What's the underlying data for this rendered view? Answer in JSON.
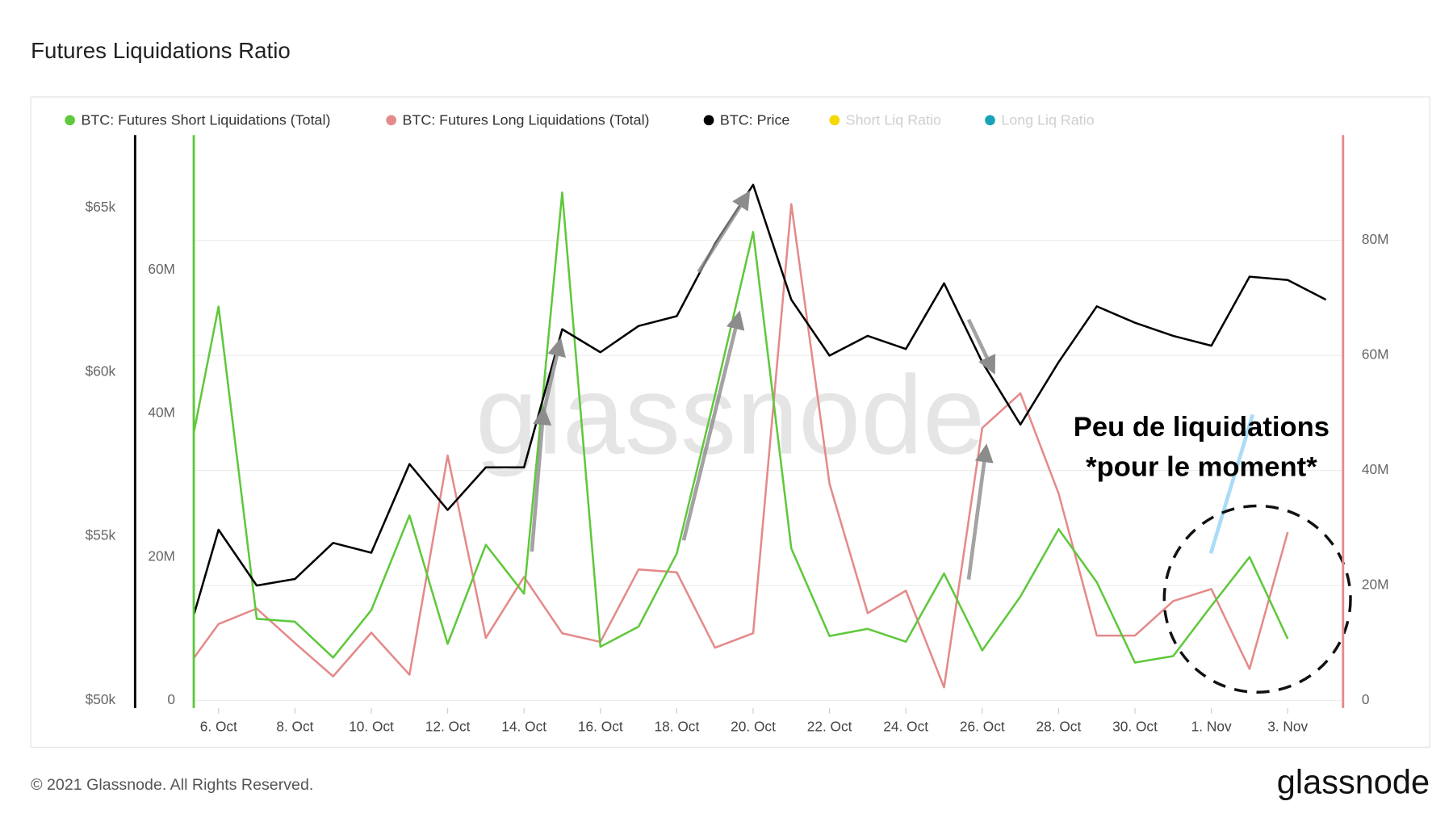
{
  "chart_data": {
    "type": "line",
    "title": "Futures Liquidations Ratio",
    "footer": "© 2021 Glassnode. All Rights Reserved.",
    "logo": "glassnode",
    "watermark": "glassnode",
    "annotations": [
      "Peu de liquidations",
      "*pour le moment*"
    ],
    "x": [
      5.35,
      6,
      7,
      8,
      9,
      10,
      11,
      12,
      13,
      14,
      15,
      16,
      17,
      18,
      19,
      20,
      21,
      22,
      23,
      24,
      25,
      26,
      27,
      28,
      29,
      30,
      31,
      32,
      33,
      34,
      35
    ],
    "xlim": [
      5.35,
      35.45
    ],
    "xticks": [
      {
        "value": 6,
        "label": "6. Oct"
      },
      {
        "value": 8,
        "label": "8. Oct"
      },
      {
        "value": 10,
        "label": "10. Oct"
      },
      {
        "value": 12,
        "label": "12. Oct"
      },
      {
        "value": 14,
        "label": "14. Oct"
      },
      {
        "value": 16,
        "label": "16. Oct"
      },
      {
        "value": 18,
        "label": "18. Oct"
      },
      {
        "value": 20,
        "label": "20. Oct"
      },
      {
        "value": 22,
        "label": "22. Oct"
      },
      {
        "value": 24,
        "label": "24. Oct"
      },
      {
        "value": 26,
        "label": "26. Oct"
      },
      {
        "value": 28,
        "label": "28. Oct"
      },
      {
        "value": 30,
        "label": "30. Oct"
      },
      {
        "value": 32,
        "label": "1. Nov"
      },
      {
        "value": 34,
        "label": "3. Nov"
      }
    ],
    "ylim": [
      49773,
      67210
    ],
    "yticks": [
      {
        "value": 50000,
        "label": "$50k"
      },
      {
        "value": 55000,
        "label": "$55k"
      },
      {
        "value": 60000,
        "label": "$60k"
      },
      {
        "value": 65000,
        "label": "$65k"
      }
    ],
    "y3lim": [
      -1040000,
      78800000
    ],
    "y3ticks": [
      0,
      {
        "value": 20000000,
        "label": "20M"
      },
      {
        "value": 40000000,
        "label": "40M"
      },
      {
        "value": 60000000,
        "label": "60M"
      }
    ],
    "y2lim": [
      -1300000,
      98300000
    ],
    "y2ticks": [
      0,
      {
        "value": 20000000,
        "label": "20M"
      },
      {
        "value": 40000000,
        "label": "40M"
      },
      {
        "value": 60000000,
        "label": "60M"
      },
      {
        "value": 80000000,
        "label": "80M"
      }
    ],
    "grid": true,
    "series": [
      {
        "name": "BTC: Futures Short Liquidations (Total)",
        "color": "#5fc83c",
        "axis": "y3",
        "values": [
          37300000,
          54900000,
          11400000,
          11000000,
          6000000,
          12600000,
          25800000,
          7900000,
          21700000,
          14900000,
          70800000,
          7500000,
          10300000,
          20500000,
          42500000,
          65300000,
          21200000,
          9000000,
          10000000,
          8200000,
          17700000,
          7000000,
          14500000,
          23900000,
          16500000,
          5300000,
          6200000,
          13200000,
          20000000,
          8600000,
          null
        ]
      },
      {
        "name": "BTC: Futures Long Liquidations (Total)",
        "color": "#e48a8a",
        "axis": "y2",
        "values": [
          7400000,
          13300000,
          16000000,
          10000000,
          4200000,
          11800000,
          4500000,
          42600000,
          10900000,
          21500000,
          11700000,
          10200000,
          22800000,
          22300000,
          9200000,
          11700000,
          86300000,
          37700000,
          15200000,
          19100000,
          2300000,
          47400000,
          53400000,
          36000000,
          11300000,
          11300000,
          17300000,
          19400000,
          5500000,
          29300000,
          null
        ]
      },
      {
        "name": "BTC: Price",
        "color": "#000000",
        "axis": "y",
        "values": [
          52600,
          55200,
          53500,
          53700,
          54800,
          54500,
          57200,
          55800,
          57100,
          57100,
          61300,
          60600,
          61400,
          61700,
          63900,
          65700,
          62200,
          60500,
          61100,
          60700,
          62700,
          60300,
          58400,
          60300,
          62000,
          61500,
          61100,
          60800,
          62900,
          62800,
          62200
        ]
      },
      {
        "name": "Short Liq Ratio",
        "color": "#f5d800",
        "hidden": true,
        "axis": "y",
        "values": [
          null,
          null,
          null,
          null,
          null,
          null,
          null,
          null,
          null,
          null,
          null,
          null,
          null,
          null,
          null,
          null,
          null,
          null,
          null,
          null,
          null,
          null,
          null,
          null,
          null,
          null,
          null,
          null,
          null,
          null,
          null
        ]
      },
      {
        "name": "Long Liq Ratio",
        "color": "#1aa3b8",
        "hidden": true,
        "axis": "y",
        "values": [
          null,
          null,
          null,
          null,
          null,
          null,
          null,
          null,
          null,
          null,
          null,
          null,
          null,
          null,
          null,
          null,
          null,
          null,
          null,
          null,
          null,
          null,
          null,
          null,
          null,
          null,
          null,
          null,
          null,
          null,
          null
        ]
      }
    ]
  }
}
